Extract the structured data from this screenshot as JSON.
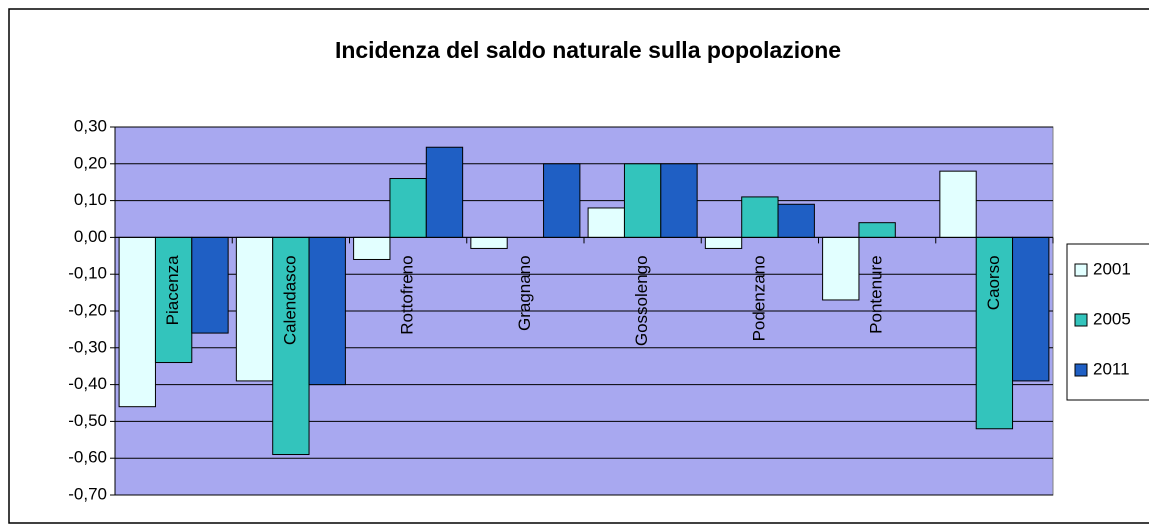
{
  "chart_data": {
    "type": "bar",
    "title": "Incidenza del saldo naturale sulla popolazione",
    "categories": [
      "Piacenza",
      "Calendasco",
      "Rottofreno",
      "Gragnano",
      "Gossolengo",
      "Podenzano",
      "Pontenure",
      "Caorso"
    ],
    "series": [
      {
        "name": "2001",
        "color": "#e2ffff",
        "values": [
          -0.46,
          -0.39,
          -0.06,
          -0.03,
          0.08,
          -0.03,
          -0.17,
          0.18
        ]
      },
      {
        "name": "2005",
        "color": "#33c4bc",
        "values": [
          -0.34,
          -0.59,
          0.16,
          0,
          0.2,
          0.11,
          0.04,
          -0.52
        ]
      },
      {
        "name": "2011",
        "color": "#1f5fc4",
        "values": [
          -0.26,
          -0.4,
          0.245,
          0.2,
          0.2,
          0.09,
          0,
          -0.39
        ]
      }
    ],
    "ylim": [
      -0.7,
      0.3
    ],
    "yticks": [
      {
        "value": 0.3,
        "label": "0,30"
      },
      {
        "value": 0.2,
        "label": "0,20"
      },
      {
        "value": 0.1,
        "label": "0,10"
      },
      {
        "value": 0,
        "label": "0,00"
      },
      {
        "value": -0.1,
        "label": "-0,10"
      },
      {
        "value": -0.2,
        "label": "-0,20"
      },
      {
        "value": -0.3,
        "label": "-0,30"
      },
      {
        "value": -0.4,
        "label": "-0,40"
      },
      {
        "value": -0.5,
        "label": "-0,50"
      },
      {
        "value": -0.6,
        "label": "-0,60"
      },
      {
        "value": -0.7,
        "label": "-0,70"
      }
    ],
    "grid": true,
    "legend": "right",
    "plot_background": "#a8a8f0"
  }
}
